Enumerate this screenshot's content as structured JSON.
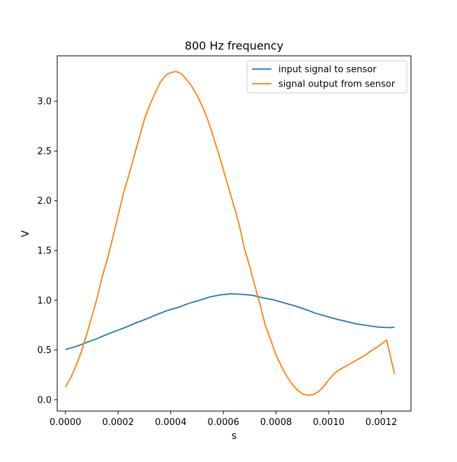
{
  "chart_data": {
    "type": "line",
    "title": "800 Hz frequency",
    "xlabel": "s",
    "ylabel": "V",
    "xlim": [
      -3.12e-05,
      0.0013125
    ],
    "ylim": [
      -0.1135,
      3.4575
    ],
    "x_ticks": [
      0.0,
      0.0002,
      0.0004,
      0.0006,
      0.0008,
      0.001,
      0.0012
    ],
    "x_tick_labels": [
      "0.0000",
      "0.0002",
      "0.0004",
      "0.0006",
      "0.0008",
      "0.0010",
      "0.0012"
    ],
    "y_ticks": [
      0.0,
      0.5,
      1.0,
      1.5,
      2.0,
      2.5,
      3.0
    ],
    "y_tick_labels": [
      "0.0",
      "0.5",
      "1.0",
      "1.5",
      "2.0",
      "2.5",
      "3.0"
    ],
    "grid": false,
    "legend_position": "top-right",
    "series": [
      {
        "name": "input signal to sensor",
        "color": "#1f77b4",
        "x": [
          0.0,
          4e-05,
          8e-05,
          0.00012,
          0.00016,
          0.0002,
          0.00023,
          0.00027,
          0.00031,
          0.00035,
          0.00039,
          0.00043,
          0.00047,
          0.00051,
          0.00055,
          0.00059,
          0.00063,
          0.00067,
          0.00071,
          0.00075,
          0.00079,
          0.00083,
          0.00087,
          0.00091,
          0.00095,
          0.00099,
          0.00103,
          0.00107,
          0.00111,
          0.00115,
          0.00119,
          0.00123,
          0.00125
        ],
        "y": [
          0.505,
          0.535,
          0.575,
          0.615,
          0.66,
          0.7,
          0.73,
          0.775,
          0.815,
          0.86,
          0.9,
          0.93,
          0.97,
          1.0,
          1.035,
          1.055,
          1.065,
          1.06,
          1.05,
          1.025,
          1.005,
          0.975,
          0.945,
          0.91,
          0.87,
          0.84,
          0.81,
          0.785,
          0.76,
          0.745,
          0.73,
          0.725,
          0.728
        ]
      },
      {
        "name": "signal output from sensor",
        "color": "#ff7f0e",
        "x": [
          0.0,
          2e-05,
          4e-05,
          6e-05,
          8e-05,
          0.0001,
          0.00012,
          0.00014,
          0.00016,
          0.00018,
          0.0002,
          0.00022,
          0.00024,
          0.00026,
          0.00028,
          0.0003,
          0.00032,
          0.00034,
          0.00036,
          0.00038,
          0.0004,
          0.00042,
          0.00044,
          0.00046,
          0.00048,
          0.0005,
          0.00052,
          0.00054,
          0.00056,
          0.00058,
          0.0006,
          0.00062,
          0.00064,
          0.00066,
          0.00068,
          0.0007,
          0.00072,
          0.00074,
          0.00076,
          0.00078,
          0.0008,
          0.00082,
          0.00084,
          0.00086,
          0.00088,
          0.0009,
          0.00092,
          0.00094,
          0.00096,
          0.00098,
          0.001,
          0.00102,
          0.00104,
          0.00106,
          0.00108,
          0.0011,
          0.00112,
          0.00114,
          0.00116,
          0.00118,
          0.0012,
          0.00122,
          0.00125
        ],
        "y": [
          0.13,
          0.22,
          0.34,
          0.48,
          0.65,
          0.83,
          1.02,
          1.24,
          1.42,
          1.63,
          1.85,
          2.07,
          2.25,
          2.44,
          2.63,
          2.82,
          2.96,
          3.08,
          3.19,
          3.26,
          3.29,
          3.3,
          3.28,
          3.22,
          3.15,
          3.06,
          2.95,
          2.82,
          2.66,
          2.49,
          2.31,
          2.13,
          1.95,
          1.76,
          1.52,
          1.34,
          1.14,
          0.95,
          0.74,
          0.6,
          0.45,
          0.34,
          0.24,
          0.16,
          0.1,
          0.06,
          0.045,
          0.05,
          0.08,
          0.13,
          0.2,
          0.26,
          0.3,
          0.33,
          0.36,
          0.39,
          0.42,
          0.45,
          0.49,
          0.52,
          0.56,
          0.6,
          0.26
        ]
      }
    ]
  }
}
